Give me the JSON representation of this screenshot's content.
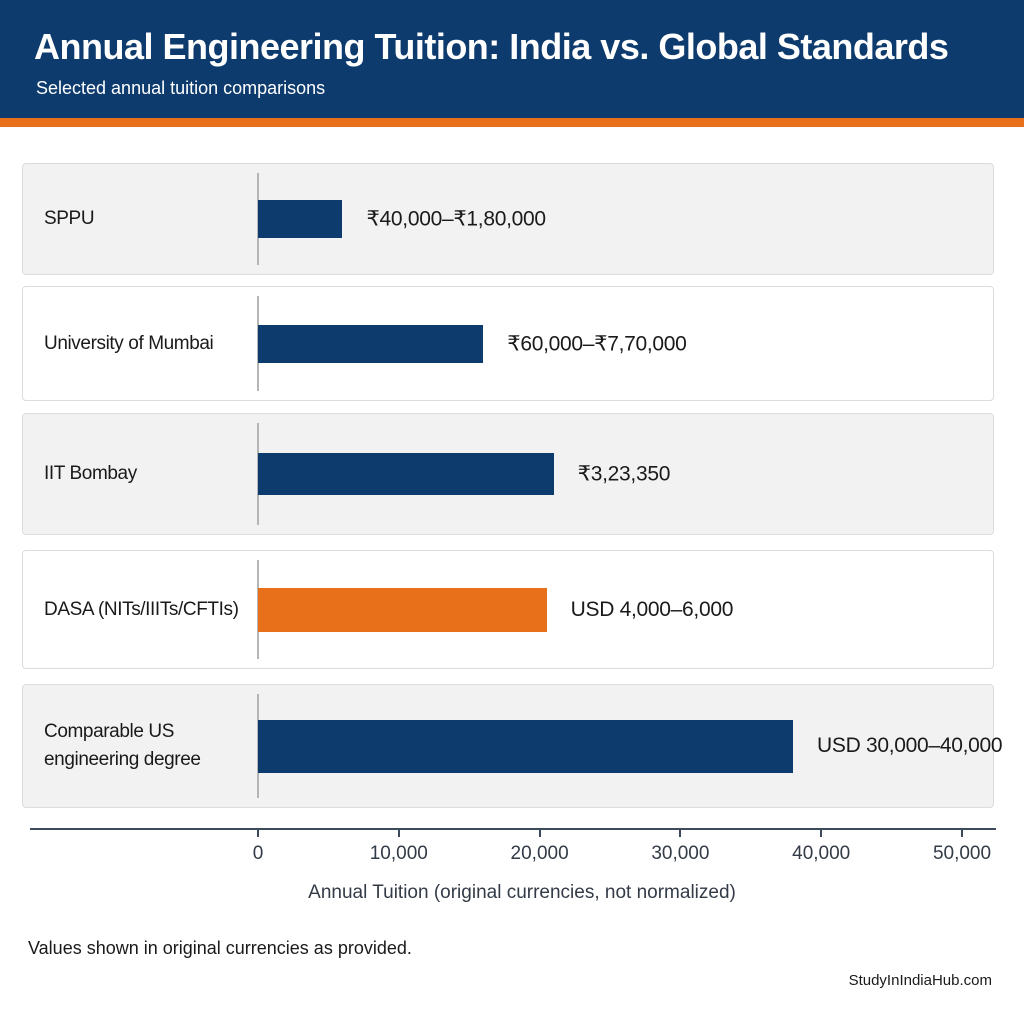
{
  "chart_data": {
    "type": "bar",
    "orientation": "horizontal",
    "title": "Annual Engineering Tuition: India vs. Global Standards",
    "subtitle": "Selected annual tuition comparisons",
    "categories": [
      "SPPU",
      "University of Mumbai",
      "IIT Bombay",
      "DASA (NITs/IIITs/CFTIs)",
      "Comparable US engineering degree"
    ],
    "values": [
      6000,
      16000,
      21000,
      20500,
      38000
    ],
    "annotations": [
      "₹40,000–₹1,80,000",
      "₹60,000–₹7,70,000",
      "₹3,23,350",
      "USD 4,000–6,000",
      "USD 30,000–40,000"
    ],
    "colors": [
      "#0d3b6e",
      "#0d3b6e",
      "#0d3b6e",
      "#e8701a",
      "#0d3b6e"
    ],
    "xlim": [
      0,
      50000
    ],
    "xticks": [
      0,
      {
        "value": 10000,
        "label": "10,000"
      },
      {
        "value": 20000,
        "label": "20,000"
      },
      {
        "value": 30000,
        "label": "30,000"
      },
      {
        "value": 40000,
        "label": "40,000"
      },
      {
        "value": 50000,
        "label": "50,000"
      }
    ],
    "xlabel": "Annual Tuition  (original currencies, not normalized)",
    "note": "Values shown in original currencies as provided.",
    "source": "StudyInIndiaHub.com"
  }
}
